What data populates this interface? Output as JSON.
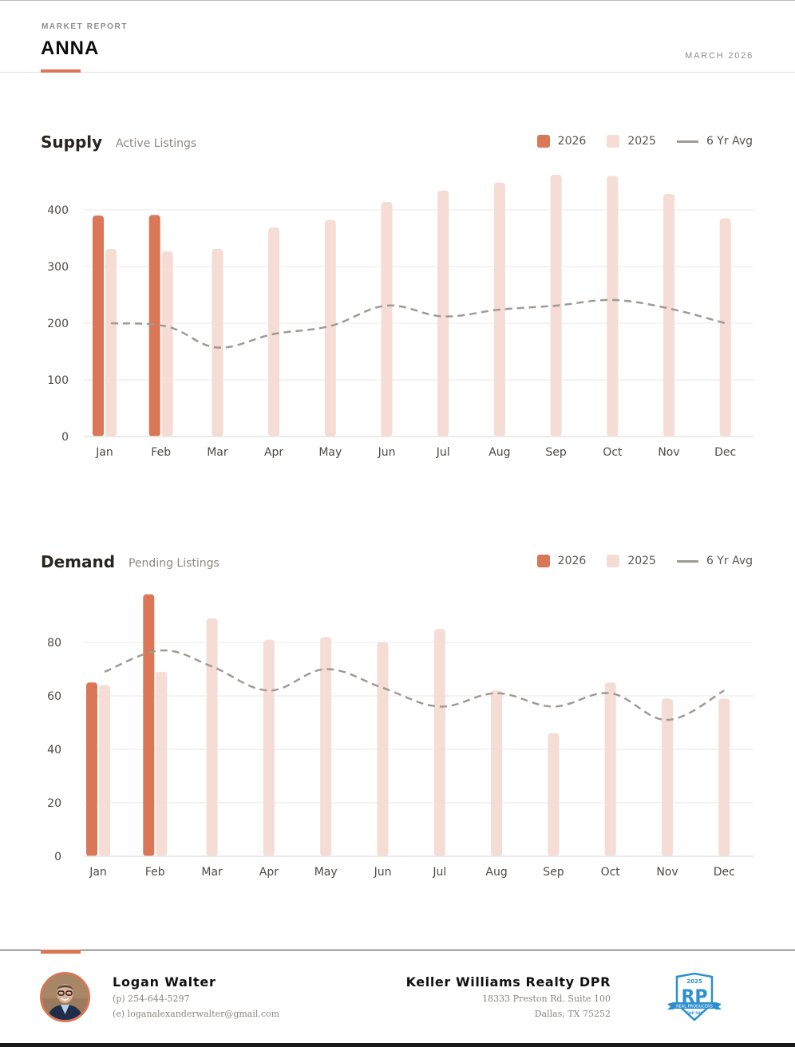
{
  "header": {
    "eyebrow": "MARKET REPORT",
    "title": "ANNA",
    "date": "MARCH 2026"
  },
  "colors": {
    "accent": "#d97757",
    "series_2026": "#d97757",
    "series_2025": "#f5dcd4",
    "avg_line": "#a09a94",
    "grid": "#eeeeee"
  },
  "supply": {
    "title": "Supply",
    "subtitle": "Active Listings"
  },
  "demand": {
    "title": "Demand",
    "subtitle": "Pending Listings"
  },
  "legend": {
    "label_2026": "2026",
    "label_2025": "2025",
    "label_avg": "6 Yr Avg"
  },
  "chart_data": [
    {
      "type": "bar",
      "title": "Supply",
      "subtitle": "Active Listings",
      "categories": [
        "Jan",
        "Feb",
        "Mar",
        "Apr",
        "May",
        "Jun",
        "Jul",
        "Aug",
        "Sep",
        "Oct",
        "Nov",
        "Dec"
      ],
      "yticks": [
        0,
        100,
        200,
        300,
        400
      ],
      "ylim": [
        0,
        400
      ],
      "grid": true,
      "legend_position": "top-right",
      "series": [
        {
          "name": "2026",
          "kind": "bar",
          "values": [
            390,
            391,
            null,
            null,
            null,
            null,
            null,
            null,
            null,
            null,
            null,
            null
          ]
        },
        {
          "name": "2025",
          "kind": "bar",
          "values": [
            331,
            327,
            331,
            369,
            382,
            414,
            434,
            448,
            462,
            460,
            428,
            385
          ]
        },
        {
          "name": "6 Yr Avg",
          "kind": "line-dashed",
          "values": [
            200,
            194,
            157,
            181,
            195,
            231,
            212,
            224,
            231,
            241,
            226,
            200
          ]
        }
      ]
    },
    {
      "type": "bar",
      "title": "Demand",
      "subtitle": "Pending Listings",
      "categories": [
        "Jan",
        "Feb",
        "Mar",
        "Apr",
        "May",
        "Jun",
        "Jul",
        "Aug",
        "Sep",
        "Oct",
        "Nov",
        "Dec"
      ],
      "yticks": [
        0,
        20,
        40,
        60,
        80
      ],
      "ylim": [
        0,
        80
      ],
      "grid": true,
      "legend_position": "top-right",
      "series": [
        {
          "name": "2026",
          "kind": "bar",
          "values": [
            65,
            98,
            null,
            null,
            null,
            null,
            null,
            null,
            null,
            null,
            null,
            null
          ]
        },
        {
          "name": "2025",
          "kind": "bar",
          "values": [
            64,
            69,
            89,
            81,
            82,
            80,
            85,
            62,
            46,
            65,
            59,
            59
          ]
        },
        {
          "name": "6 Yr Avg",
          "kind": "line-dashed",
          "values": [
            69,
            77,
            71,
            62,
            70,
            63,
            56,
            61,
            56,
            61,
            51,
            62
          ]
        }
      ]
    }
  ],
  "footer": {
    "agent_name": "Logan Walter",
    "agent_phone": "(p) 254-644-5297",
    "agent_email": "(e) loganalexanderwalter@gmail.com",
    "office_name": "Keller Williams Realty DPR",
    "office_address1": "18333 Preston Rd. Suite 100",
    "office_address2": "Dallas, TX 75252",
    "badge_year": "2025",
    "badge_letters": "RP",
    "badge_banner": "REAL PRODUCERS",
    "badge_rank": "TOP 500"
  }
}
